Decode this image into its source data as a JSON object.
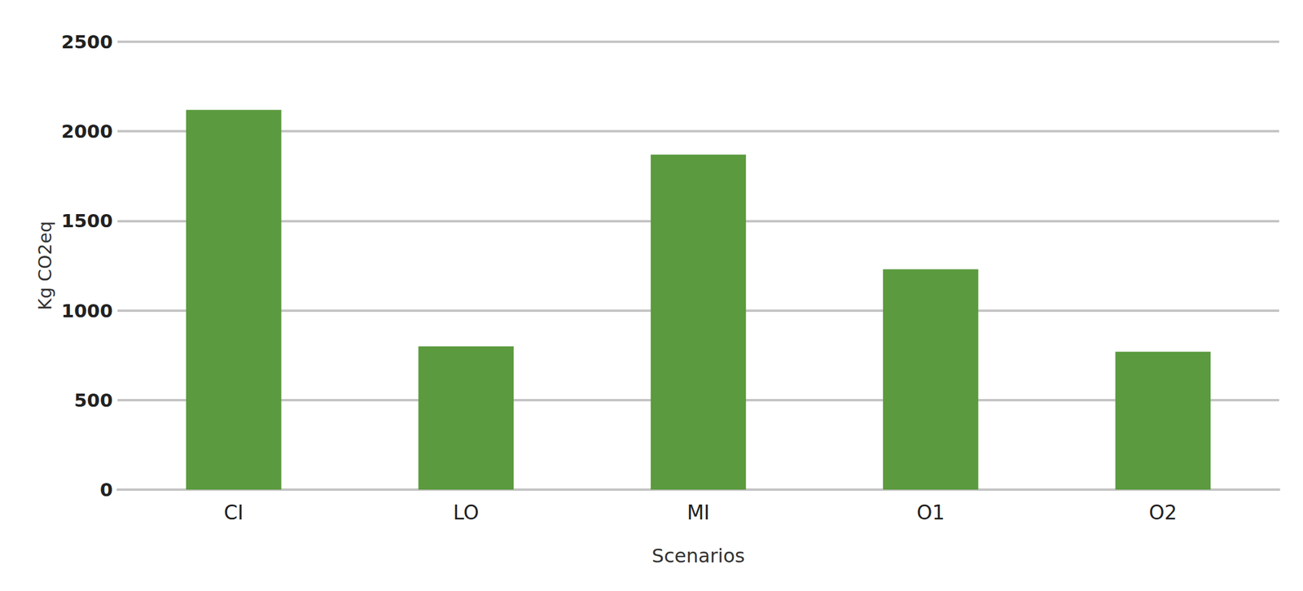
{
  "chart_data": {
    "type": "bar",
    "x_label": "Scenarios",
    "y_label": "Kg CO2eq",
    "categories": [
      "CI",
      "LO",
      "MI",
      "O1",
      "O2"
    ],
    "values": [
      2120,
      800,
      1870,
      1230,
      770
    ],
    "color": "#5b9a3e",
    "ylim": [
      0,
      2500
    ],
    "yticks": [
      0,
      500,
      1000,
      1500,
      2000,
      2500
    ],
    "grid": true
  }
}
